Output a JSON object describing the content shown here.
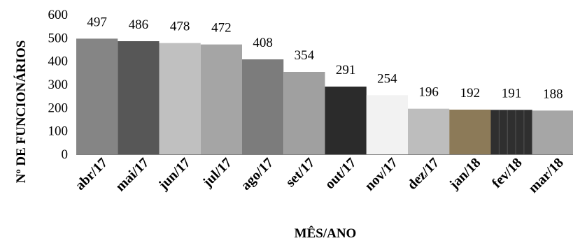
{
  "chart_data": {
    "type": "bar",
    "title": "",
    "xlabel": "MÊS/ANO",
    "ylabel": "Nº DE FUNCIONÁRIOS",
    "ylim": [
      0,
      600
    ],
    "yticks": [
      0,
      100,
      200,
      300,
      400,
      500,
      600
    ],
    "grid": false,
    "legend": "none",
    "data_labels": true,
    "categories": [
      "abr/17",
      "mai/17",
      "jun/17",
      "jul/17",
      "ago/17",
      "set/17",
      "out/17",
      "nov/17",
      "dez/17",
      "jan/18",
      "fev/18",
      "mar/18"
    ],
    "values": [
      497,
      486,
      478,
      472,
      408,
      354,
      291,
      254,
      196,
      192,
      191,
      188
    ],
    "colors": [
      "#858585",
      "#575757",
      "#c0c0c0",
      "#a5a5a5",
      "#7c7c7c",
      "#a0a0a0",
      "#2b2b2b",
      "#f2f2f2",
      "#bdbdbd",
      "#8c7a58",
      "#2f2f2f",
      "#a6a6a6"
    ]
  }
}
